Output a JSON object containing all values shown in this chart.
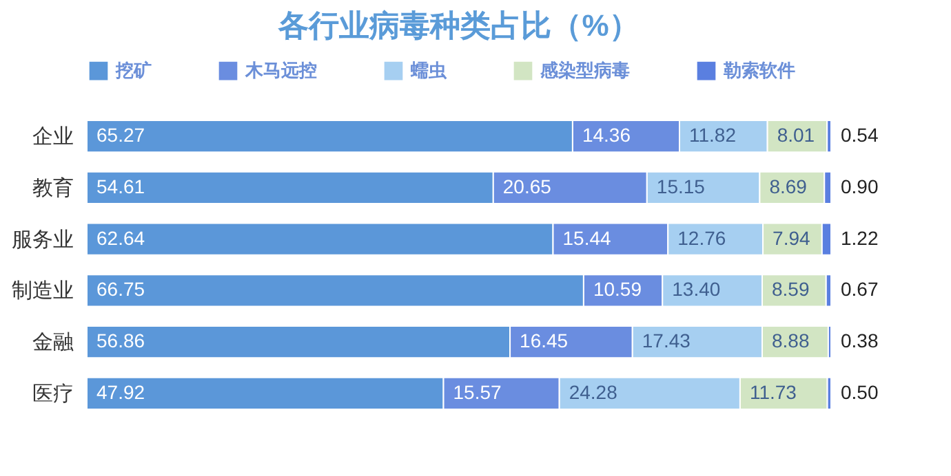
{
  "chart_data": {
    "type": "bar",
    "orientation": "horizontal",
    "stacked": true,
    "title": "各行业病毒种类占比（%）",
    "categories": [
      "企业",
      "教育",
      "服务业",
      "制造业",
      "金融",
      "医疗"
    ],
    "series": [
      {
        "name": "挖矿",
        "color": "#5b97d9",
        "values": [
          65.27,
          54.61,
          62.64,
          66.75,
          56.86,
          47.92
        ],
        "value_labels": [
          "65.27",
          "54.61",
          "62.64",
          "66.75",
          "56.86",
          "47.92"
        ]
      },
      {
        "name": "木马远控",
        "color": "#6a8de0",
        "values": [
          14.36,
          20.65,
          15.44,
          10.59,
          16.45,
          15.57
        ],
        "value_labels": [
          "14.36",
          "20.65",
          "15.44",
          "10.59",
          "16.45",
          "15.57"
        ]
      },
      {
        "name": "蠕虫",
        "color": "#a6cff1",
        "values": [
          11.82,
          15.15,
          12.76,
          13.4,
          17.43,
          24.28
        ],
        "value_labels": [
          "11.82",
          "15.15",
          "12.76",
          "13.40",
          "17.43",
          "24.28"
        ]
      },
      {
        "name": "感染型病毒",
        "color": "#d2e5c3",
        "values": [
          8.01,
          8.69,
          7.94,
          8.59,
          8.88,
          11.73
        ],
        "value_labels": [
          "8.01",
          "8.69",
          "7.94",
          "8.59",
          "8.88",
          "11.73"
        ]
      },
      {
        "name": "勒索软件",
        "color": "#5a7fe0",
        "values": [
          0.54,
          0.9,
          1.22,
          0.67,
          0.38,
          0.5
        ],
        "value_labels": [
          "0.54",
          "0.90",
          "1.22",
          "0.67",
          "0.38",
          "0.50"
        ]
      }
    ],
    "xlim": [
      0,
      100
    ],
    "tick_labels": "y",
    "legend": "top"
  }
}
